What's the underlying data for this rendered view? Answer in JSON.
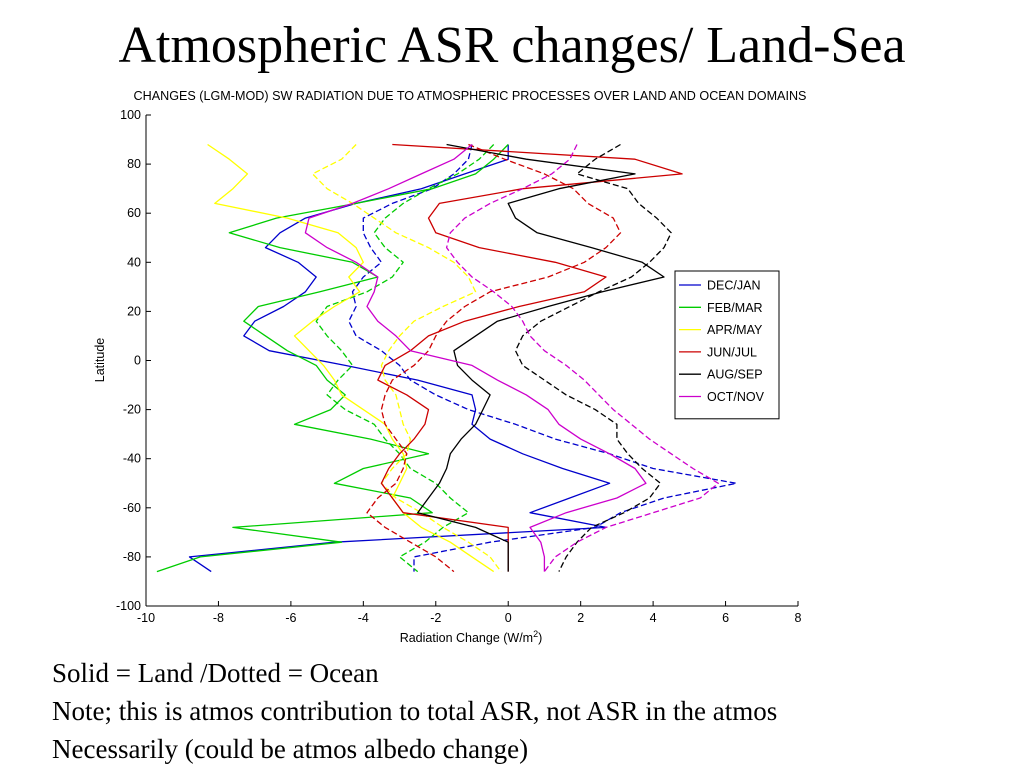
{
  "slide": {
    "title": "Atmospheric ASR changes/ Land-Sea",
    "notes": [
      "Solid = Land /Dotted = Ocean",
      "Note; this is atmos contribution to total ASR, not ASR in the atmos",
      "Necessarily (could be atmos albedo change)"
    ]
  },
  "chart_data": {
    "type": "line",
    "title": "CHANGES (LGM-MOD) SW RADIATION DUE TO ATMOSPHERIC PROCESSES OVER LAND AND OCEAN DOMAINS",
    "xlabel": "Radiation Change (W/m",
    "xlabel_sup": "2",
    "xlabel_tail": ")",
    "ylabel": "Latitude",
    "xlim": [
      -10,
      8
    ],
    "ylim": [
      -100,
      100
    ],
    "xticks": [
      -10,
      -8,
      -6,
      -4,
      -2,
      0,
      2,
      4,
      6,
      8
    ],
    "yticks": [
      100,
      80,
      60,
      40,
      20,
      0,
      -20,
      -40,
      -60,
      -80,
      -100
    ],
    "grid": false,
    "legend_position": "right",
    "y": [
      88,
      82,
      76,
      70,
      64,
      58,
      52,
      46,
      40,
      34,
      28,
      22,
      16,
      10,
      4,
      -2,
      -8,
      -14,
      -20,
      -26,
      -32,
      -38,
      -44,
      -50,
      -56,
      -62,
      -68,
      -74,
      -80,
      -86
    ],
    "series": [
      {
        "name": "DEC/JAN",
        "color": "#0000cc",
        "style": "solid",
        "x": [
          0.0,
          0.0,
          -1.2,
          -2.4,
          -4.2,
          -5.6,
          -6.3,
          -6.7,
          -5.8,
          -5.3,
          -5.6,
          -6.2,
          -7.0,
          -7.3,
          -6.6,
          -4.5,
          -2.5,
          -1.0,
          -0.9,
          -1.0,
          -0.5,
          0.4,
          1.5,
          2.8,
          1.7,
          0.6,
          2.7,
          -4.8,
          -8.8,
          -8.2
        ]
      },
      {
        "name": "DEC/JAN",
        "color": "#0000cc",
        "style": "dashed",
        "x": [
          -1.0,
          -1.1,
          -1.5,
          -2.1,
          -3.2,
          -4.0,
          -4.0,
          -3.8,
          -3.5,
          -4.0,
          -4.3,
          -4.2,
          -4.4,
          -4.2,
          -3.5,
          -3.0,
          -2.7,
          -2.0,
          -1.1,
          0.2,
          1.3,
          2.8,
          4.0,
          6.3,
          4.3,
          3.1,
          2.4,
          -0.5,
          -2.6,
          -2.6
        ]
      },
      {
        "name": "FEB/MAR",
        "color": "#00cc00",
        "style": "solid",
        "x": [
          0.0,
          -0.4,
          -0.9,
          -2.1,
          -4.2,
          -6.4,
          -7.7,
          -6.3,
          -4.3,
          -3.6,
          -5.2,
          -6.9,
          -7.3,
          -6.7,
          -6.1,
          -5.3,
          -5.0,
          -4.5,
          -4.9,
          -5.9,
          -3.8,
          -2.2,
          -4.0,
          -4.8,
          -2.7,
          -2.1,
          -7.6,
          -4.6,
          -8.5,
          -9.7
        ]
      },
      {
        "name": "FEB/MAR",
        "color": "#00cc00",
        "style": "dashed",
        "x": [
          -0.4,
          -0.8,
          -1.4,
          -2.2,
          -2.9,
          -3.4,
          -3.7,
          -3.4,
          -2.9,
          -3.2,
          -3.9,
          -5.0,
          -5.3,
          -5.0,
          -4.6,
          -4.3,
          -4.7,
          -5.0,
          -4.5,
          -3.7,
          -3.4,
          -3.0,
          -2.7,
          -2.0,
          -1.6,
          -1.1,
          -1.8,
          -2.3,
          -3.0,
          -2.5
        ]
      },
      {
        "name": "APR/MAY",
        "color": "#ffff00",
        "style": "solid",
        "x": [
          -8.3,
          -7.7,
          -7.2,
          -7.6,
          -8.1,
          -6.1,
          -4.7,
          -4.2,
          -4.0,
          -4.4,
          -4.1,
          -4.8,
          -5.4,
          -5.9,
          -5.5,
          -5.1,
          -4.8,
          -4.6,
          -4.0,
          -3.4,
          -3.2,
          -2.9,
          -2.8,
          -3.0,
          -3.2,
          -2.9,
          -2.4,
          -1.6,
          -1.0,
          -0.4
        ]
      },
      {
        "name": "APR/MAY",
        "color": "#ffff00",
        "style": "dashed",
        "x": [
          -4.2,
          -4.6,
          -5.4,
          -5.0,
          -4.3,
          -3.7,
          -3.1,
          -2.2,
          -1.5,
          -1.1,
          -0.9,
          -1.8,
          -2.6,
          -3.0,
          -3.3,
          -3.5,
          -3.4,
          -3.1,
          -3.0,
          -2.9,
          -2.7,
          -2.8,
          -3.2,
          -3.5,
          -3.1,
          -2.4,
          -1.8,
          -1.1,
          -0.5,
          -0.2
        ]
      },
      {
        "name": "JUN/JUL",
        "color": "#cc0000",
        "style": "solid",
        "x": [
          -3.2,
          3.5,
          4.8,
          0.4,
          -1.9,
          -2.2,
          -2.0,
          -0.8,
          1.3,
          2.7,
          2.1,
          0.3,
          -1.2,
          -2.2,
          -2.7,
          -3.4,
          -3.6,
          -2.8,
          -2.2,
          -2.3,
          -2.6,
          -3.0,
          -3.3,
          -3.5,
          -3.2,
          -2.9,
          0.0,
          0.0,
          0.0,
          0.0
        ]
      },
      {
        "name": "JUN/JUL",
        "color": "#cc0000",
        "style": "dashed",
        "x": [
          -1.1,
          -0.1,
          1.0,
          1.8,
          2.2,
          2.9,
          3.1,
          2.7,
          2.1,
          1.1,
          -0.5,
          -1.2,
          -1.7,
          -2.0,
          -2.2,
          -2.6,
          -3.2,
          -3.4,
          -3.5,
          -3.4,
          -3.1,
          -2.8,
          -2.9,
          -3.1,
          -3.6,
          -3.9,
          -3.4,
          -2.7,
          -2.0,
          -1.5
        ]
      },
      {
        "name": "AUG/SEP",
        "color": "#000000",
        "style": "solid",
        "x": [
          -1.7,
          0.5,
          3.5,
          1.4,
          0.0,
          0.2,
          0.8,
          2.3,
          3.7,
          4.3,
          2.6,
          1.1,
          -0.3,
          -0.9,
          -1.5,
          -1.4,
          -1.0,
          -0.5,
          -0.7,
          -0.9,
          -1.3,
          -1.6,
          -1.7,
          -1.9,
          -2.2,
          -2.5,
          -0.9,
          0.0,
          0.0,
          0.0
        ]
      },
      {
        "name": "AUG/SEP",
        "color": "#000000",
        "style": "dashed",
        "x": [
          3.1,
          2.4,
          1.9,
          3.3,
          3.6,
          4.1,
          4.5,
          4.3,
          3.9,
          3.4,
          2.5,
          1.7,
          0.9,
          0.4,
          0.2,
          0.4,
          1.0,
          1.6,
          2.4,
          3.0,
          3.0,
          3.3,
          3.7,
          4.2,
          3.9,
          3.2,
          2.3,
          1.9,
          1.6,
          1.4
        ]
      },
      {
        "name": "OCT/NOV",
        "color": "#cc00cc",
        "style": "solid",
        "x": [
          -1.0,
          -1.5,
          -2.4,
          -3.3,
          -4.3,
          -5.5,
          -5.6,
          -5.0,
          -4.2,
          -3.6,
          -3.7,
          -3.9,
          -3.6,
          -3.1,
          -2.7,
          -1.0,
          -0.3,
          0.5,
          1.1,
          1.4,
          2.0,
          2.8,
          3.5,
          3.8,
          3.0,
          1.6,
          0.6,
          0.9,
          1.0,
          1.0
        ]
      },
      {
        "name": "OCT/NOV",
        "color": "#cc00cc",
        "style": "dashed",
        "x": [
          1.9,
          1.7,
          1.2,
          0.4,
          -0.5,
          -1.2,
          -1.6,
          -1.7,
          -1.4,
          -1.0,
          -0.4,
          0.1,
          0.4,
          0.6,
          1.0,
          1.6,
          2.1,
          2.5,
          2.9,
          3.4,
          3.9,
          4.5,
          5.1,
          5.8,
          5.3,
          4.0,
          2.7,
          1.9,
          1.3,
          1.0
        ]
      }
    ]
  }
}
